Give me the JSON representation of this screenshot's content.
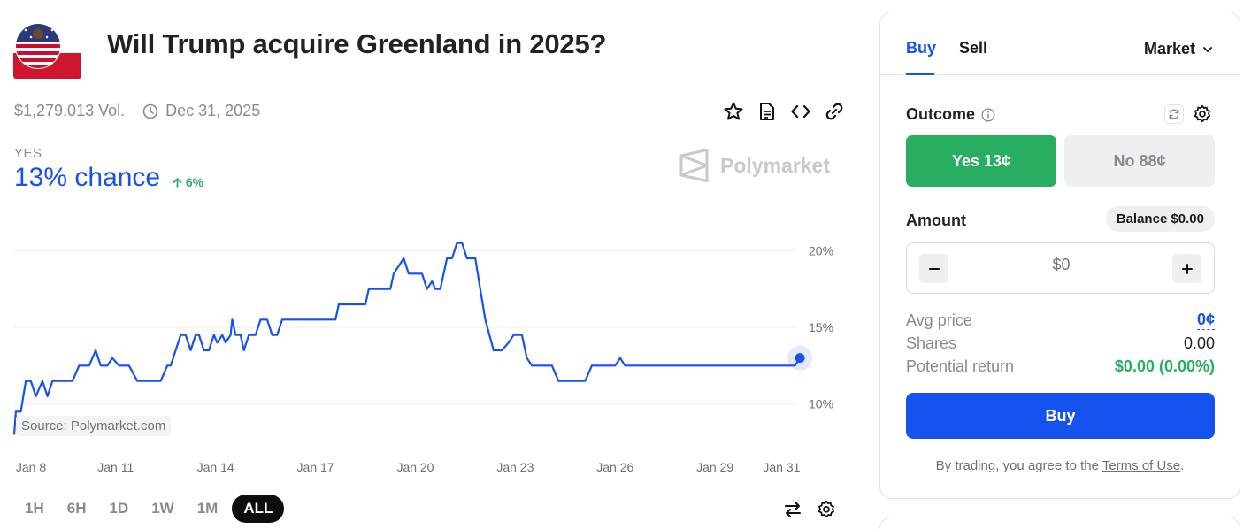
{
  "market": {
    "title": "Will Trump acquire Greenland in 2025?",
    "volume": "$1,279,013 Vol.",
    "end_date": "Dec 31, 2025",
    "outcome_label": "YES",
    "chance": "13% chance",
    "change": "6%",
    "brand": "Polymarket"
  },
  "chart_data": {
    "type": "line",
    "series": [
      {
        "values": [
          [
            7.95,
            8.0
          ],
          [
            8.0,
            9.5
          ],
          [
            8.15,
            9.5
          ],
          [
            8.3,
            11.5
          ],
          [
            8.45,
            11.5
          ],
          [
            8.6,
            10.5
          ],
          [
            8.8,
            11.5
          ],
          [
            8.95,
            10.5
          ],
          [
            9.1,
            11.5
          ],
          [
            9.3,
            11.5
          ],
          [
            9.7,
            11.5
          ],
          [
            9.9,
            12.5
          ],
          [
            10.2,
            12.5
          ],
          [
            10.4,
            13.5
          ],
          [
            10.55,
            12.5
          ],
          [
            10.75,
            12.5
          ],
          [
            10.9,
            13.0
          ],
          [
            11.1,
            12.5
          ],
          [
            11.4,
            12.5
          ],
          [
            11.65,
            11.5
          ],
          [
            12.1,
            11.5
          ],
          [
            12.35,
            11.5
          ],
          [
            12.55,
            12.5
          ],
          [
            12.65,
            12.5
          ],
          [
            12.95,
            14.5
          ],
          [
            13.1,
            14.5
          ],
          [
            13.25,
            13.5
          ],
          [
            13.4,
            14.5
          ],
          [
            13.5,
            14.5
          ],
          [
            13.65,
            13.5
          ],
          [
            13.8,
            13.5
          ],
          [
            13.95,
            14.5
          ],
          [
            14.05,
            14.0
          ],
          [
            14.2,
            14.5
          ],
          [
            14.3,
            14.0
          ],
          [
            14.45,
            14.5
          ],
          [
            14.5,
            15.5
          ],
          [
            14.6,
            14.5
          ],
          [
            14.75,
            14.5
          ],
          [
            14.85,
            13.5
          ],
          [
            15.0,
            14.5
          ],
          [
            15.2,
            14.5
          ],
          [
            15.35,
            15.5
          ],
          [
            15.55,
            15.5
          ],
          [
            15.7,
            14.5
          ],
          [
            15.85,
            14.5
          ],
          [
            16.0,
            15.5
          ],
          [
            16.4,
            15.5
          ],
          [
            17.6,
            15.5
          ],
          [
            17.7,
            16.5
          ],
          [
            17.9,
            16.5
          ],
          [
            18.5,
            16.5
          ],
          [
            18.6,
            17.5
          ],
          [
            18.8,
            17.5
          ],
          [
            19.25,
            17.5
          ],
          [
            19.35,
            18.5
          ],
          [
            19.5,
            19.0
          ],
          [
            19.65,
            19.5
          ],
          [
            19.8,
            18.5
          ],
          [
            20.2,
            18.5
          ],
          [
            20.35,
            17.5
          ],
          [
            20.5,
            18.0
          ],
          [
            20.6,
            17.5
          ],
          [
            20.75,
            17.5
          ],
          [
            20.95,
            19.5
          ],
          [
            21.1,
            19.5
          ],
          [
            21.25,
            20.5
          ],
          [
            21.4,
            20.5
          ],
          [
            21.55,
            19.5
          ],
          [
            21.8,
            19.5
          ],
          [
            21.95,
            17.5
          ],
          [
            22.1,
            15.5
          ],
          [
            22.35,
            13.5
          ],
          [
            22.6,
            13.5
          ],
          [
            22.8,
            14.0
          ],
          [
            22.95,
            14.5
          ],
          [
            23.2,
            14.5
          ],
          [
            23.35,
            13.0
          ],
          [
            23.5,
            12.5
          ],
          [
            24.1,
            12.5
          ],
          [
            24.3,
            11.5
          ],
          [
            24.6,
            11.5
          ],
          [
            25.1,
            11.5
          ],
          [
            25.3,
            12.5
          ],
          [
            25.6,
            12.5
          ],
          [
            26.0,
            12.5
          ],
          [
            26.15,
            13.0
          ],
          [
            26.3,
            12.5
          ],
          [
            27.0,
            12.5
          ],
          [
            28.0,
            12.5
          ],
          [
            29.0,
            12.5
          ],
          [
            30.0,
            12.5
          ],
          [
            31.0,
            12.5
          ],
          [
            31.4,
            12.5
          ],
          [
            31.55,
            13.0
          ]
        ]
      }
    ],
    "x_ticks": [
      {
        "value": 8,
        "label": "Jan 8"
      },
      {
        "value": 11,
        "label": "Jan 11"
      },
      {
        "value": 14,
        "label": "Jan 14"
      },
      {
        "value": 17,
        "label": "Jan 17"
      },
      {
        "value": 20,
        "label": "Jan 20"
      },
      {
        "value": 23,
        "label": "Jan 23"
      },
      {
        "value": 26,
        "label": "Jan 26"
      },
      {
        "value": 29,
        "label": "Jan 29"
      },
      {
        "value": 31,
        "label": "Jan 31"
      }
    ],
    "y_ticks": [
      {
        "value": 10,
        "label": "10%"
      },
      {
        "value": 15,
        "label": "15%"
      },
      {
        "value": 20,
        "label": "20%"
      }
    ],
    "xlim": [
      7.95,
      31.6
    ],
    "ylim": [
      7.5,
      22.5
    ],
    "grid": true,
    "line_color": "#1652f0",
    "source": "Source: Polymarket.com"
  },
  "time_ranges": [
    "1H",
    "6H",
    "1D",
    "1W",
    "1M",
    "ALL"
  ],
  "active_range": "ALL",
  "trade": {
    "tab_buy": "Buy",
    "tab_sell": "Sell",
    "order_type": "Market",
    "outcome_label": "Outcome",
    "yes_button": "Yes 13¢",
    "no_button": "No 88¢",
    "amount_label": "Amount",
    "balance": "Balance $0.00",
    "amount_placeholder": "$0",
    "avg_price_label": "Avg price",
    "avg_price_value": "0¢",
    "shares_label": "Shares",
    "shares_value": "0.00",
    "return_label": "Potential return",
    "return_value": "$0.00 (0.00%)",
    "buy_button": "Buy",
    "terms_prefix": "By trading, you agree to the ",
    "terms_link": "Terms of Use",
    "terms_suffix": "."
  },
  "colors": {
    "accent": "#1652f0",
    "positive": "#27ae60",
    "muted": "#858a93"
  },
  "icons": [
    "clock-icon",
    "star-icon",
    "document-icon",
    "code-icon",
    "link-icon",
    "info-icon",
    "refresh-icon",
    "settings-icon",
    "swap-icon",
    "chevron-down-icon",
    "minus-icon",
    "plus-icon",
    "arrow-up-icon"
  ]
}
